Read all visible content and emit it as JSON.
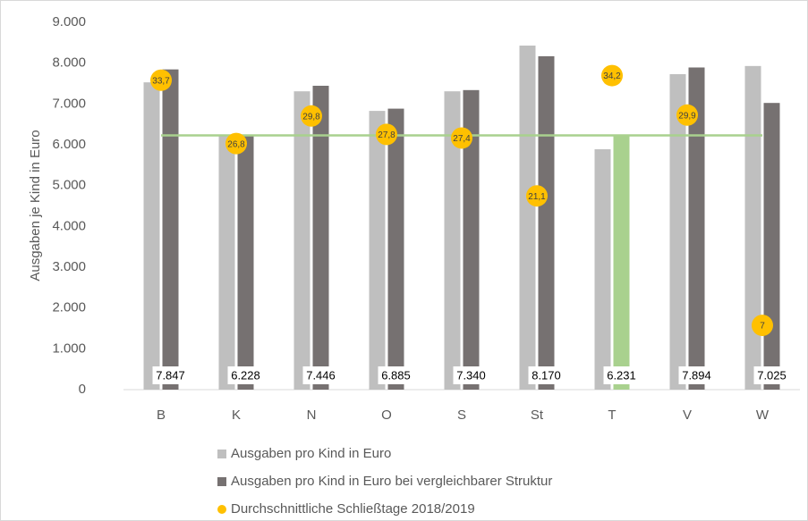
{
  "chart_data": {
    "type": "bar",
    "y_axis_label": "Ausgaben je Kind in Euro",
    "categories": [
      "B",
      "K",
      "N",
      "O",
      "S",
      "St",
      "T",
      "V",
      "W"
    ],
    "series": [
      {
        "name": "Ausgaben pro Kind in Euro",
        "color": "#bfbfbf",
        "values": [
          7530,
          6220,
          7310,
          6830,
          7310,
          8430,
          5890,
          7730,
          7930
        ]
      },
      {
        "name": "Ausgaben pro Kind in Euro bei vergleichbarer Struktur",
        "color": "#767171",
        "highlight": {
          "index": 6,
          "color": "#a9d18e"
        },
        "values": [
          7847,
          6228,
          7446,
          6885,
          7340,
          8170,
          6231,
          7894,
          7025
        ],
        "value_labels": [
          "7.847",
          "6.228",
          "7.446",
          "6.885",
          "7.340",
          "8.170",
          "6.231",
          "7.894",
          "7.025"
        ]
      },
      {
        "name": "Durchschnittliche Schließtage 2018/2019",
        "color": "#ffc000",
        "axis": "y2",
        "marker": "circle",
        "values": [
          33.7,
          26.8,
          29.8,
          27.8,
          27.4,
          21.1,
          34.2,
          29.9,
          7
        ],
        "value_labels": [
          "33,7",
          "26,8",
          "29,8",
          "27,8",
          "27,4",
          "21,1",
          "34,2",
          "29,9",
          "7"
        ]
      }
    ],
    "reference_line": {
      "value": 6231,
      "color": "#a9d18e"
    },
    "ylim": [
      0,
      9000
    ],
    "yticks": [
      {
        "value": 0,
        "label": "0"
      },
      {
        "value": 1000,
        "label": "1.000"
      },
      {
        "value": 2000,
        "label": "2.000"
      },
      {
        "value": 3000,
        "label": "3.000"
      },
      {
        "value": 4000,
        "label": "4.000"
      },
      {
        "value": 5000,
        "label": "5.000"
      },
      {
        "value": 6000,
        "label": "6.000"
      },
      {
        "value": 7000,
        "label": "7.000"
      },
      {
        "value": 8000,
        "label": "8.000"
      },
      {
        "value": 9000,
        "label": "9.000"
      }
    ],
    "y2lim": [
      0,
      40
    ],
    "grid": false,
    "legend": "bottom"
  }
}
